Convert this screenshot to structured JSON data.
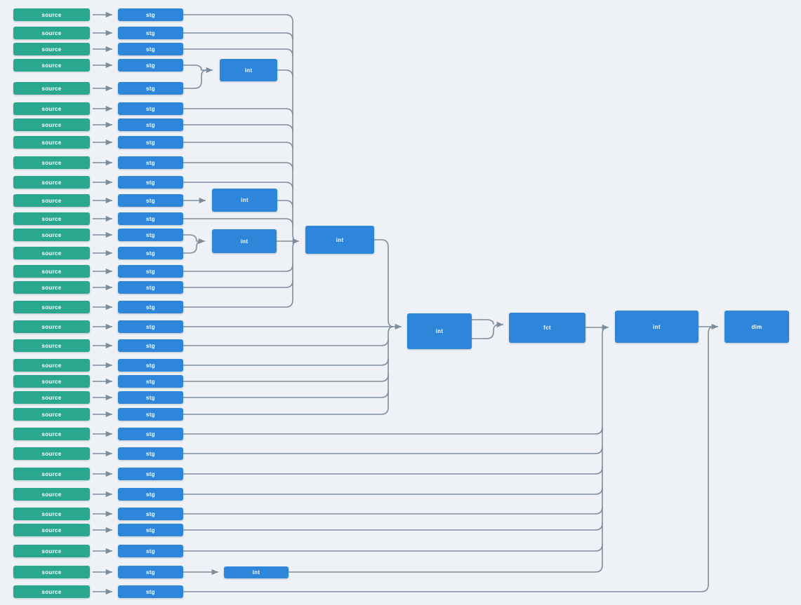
{
  "diagram": {
    "type": "lineage-dag",
    "background": "#eef2f6",
    "colors": {
      "source_node": "#2aa78f",
      "model_node": "#2e86db",
      "edge": "#7e8d9d",
      "node_text": "#ffffff"
    },
    "labels": {
      "source": "source",
      "staging": "stg",
      "intermediate": "int",
      "fact": "fct",
      "dimension": "dim"
    },
    "counts": {
      "source_nodes": 32,
      "stg_nodes": 32,
      "int_nodes": 7,
      "fct_nodes": 1,
      "dim_nodes": 1,
      "edges": 72
    },
    "nodes": [
      {
        "id": "src-01",
        "label": "source"
      },
      {
        "id": "src-02",
        "label": "source"
      },
      {
        "id": "src-03",
        "label": "source"
      },
      {
        "id": "src-04",
        "label": "source"
      },
      {
        "id": "src-05",
        "label": "source"
      },
      {
        "id": "src-06",
        "label": "source"
      },
      {
        "id": "src-07",
        "label": "source"
      },
      {
        "id": "src-08",
        "label": "source"
      },
      {
        "id": "src-09",
        "label": "source"
      },
      {
        "id": "src-10",
        "label": "source"
      },
      {
        "id": "src-11",
        "label": "source"
      },
      {
        "id": "src-12",
        "label": "source"
      },
      {
        "id": "src-13",
        "label": "source"
      },
      {
        "id": "src-14",
        "label": "source"
      },
      {
        "id": "src-15",
        "label": "source"
      },
      {
        "id": "src-16",
        "label": "source"
      },
      {
        "id": "src-17",
        "label": "source"
      },
      {
        "id": "src-18",
        "label": "source"
      },
      {
        "id": "src-19",
        "label": "source"
      },
      {
        "id": "src-20",
        "label": "source"
      },
      {
        "id": "src-21",
        "label": "source"
      },
      {
        "id": "src-22",
        "label": "source"
      },
      {
        "id": "src-23",
        "label": "source"
      },
      {
        "id": "src-24",
        "label": "source"
      },
      {
        "id": "src-25",
        "label": "source"
      },
      {
        "id": "src-26",
        "label": "source"
      },
      {
        "id": "src-27",
        "label": "source"
      },
      {
        "id": "src-28",
        "label": "source"
      },
      {
        "id": "src-29",
        "label": "source"
      },
      {
        "id": "src-30",
        "label": "source"
      },
      {
        "id": "src-31",
        "label": "source"
      },
      {
        "id": "src-32",
        "label": "source"
      },
      {
        "id": "stg-01",
        "label": "stg"
      },
      {
        "id": "stg-02",
        "label": "stg"
      },
      {
        "id": "stg-03",
        "label": "stg"
      },
      {
        "id": "stg-04",
        "label": "stg"
      },
      {
        "id": "stg-05",
        "label": "stg"
      },
      {
        "id": "stg-06",
        "label": "stg"
      },
      {
        "id": "stg-07",
        "label": "stg"
      },
      {
        "id": "stg-08",
        "label": "stg"
      },
      {
        "id": "stg-09",
        "label": "stg"
      },
      {
        "id": "stg-10",
        "label": "stg"
      },
      {
        "id": "stg-11",
        "label": "stg"
      },
      {
        "id": "stg-12",
        "label": "stg"
      },
      {
        "id": "stg-13",
        "label": "stg"
      },
      {
        "id": "stg-14",
        "label": "stg"
      },
      {
        "id": "stg-15",
        "label": "stg"
      },
      {
        "id": "stg-16",
        "label": "stg"
      },
      {
        "id": "stg-17",
        "label": "stg"
      },
      {
        "id": "stg-18",
        "label": "stg"
      },
      {
        "id": "stg-19",
        "label": "stg"
      },
      {
        "id": "stg-20",
        "label": "stg"
      },
      {
        "id": "stg-21",
        "label": "stg"
      },
      {
        "id": "stg-22",
        "label": "stg"
      },
      {
        "id": "stg-23",
        "label": "stg"
      },
      {
        "id": "stg-24",
        "label": "stg"
      },
      {
        "id": "stg-25",
        "label": "stg"
      },
      {
        "id": "stg-26",
        "label": "stg"
      },
      {
        "id": "stg-27",
        "label": "stg"
      },
      {
        "id": "stg-28",
        "label": "stg"
      },
      {
        "id": "stg-29",
        "label": "stg"
      },
      {
        "id": "stg-30",
        "label": "stg"
      },
      {
        "id": "stg-31",
        "label": "stg"
      },
      {
        "id": "stg-32",
        "label": "stg"
      },
      {
        "id": "int-top",
        "label": "int"
      },
      {
        "id": "int-a",
        "label": "int"
      },
      {
        "id": "int-b",
        "label": "int"
      },
      {
        "id": "int-c",
        "label": "int"
      },
      {
        "id": "int-mid",
        "label": "int"
      },
      {
        "id": "fct",
        "label": "fct"
      },
      {
        "id": "int-right",
        "label": "int"
      },
      {
        "id": "dim",
        "label": "dim"
      },
      {
        "id": "int-31",
        "label": "int"
      }
    ],
    "edges": [
      [
        "src-01",
        "stg-01"
      ],
      [
        "src-02",
        "stg-02"
      ],
      [
        "src-03",
        "stg-03"
      ],
      [
        "src-04",
        "stg-04"
      ],
      [
        "src-05",
        "stg-05"
      ],
      [
        "src-06",
        "stg-06"
      ],
      [
        "src-07",
        "stg-07"
      ],
      [
        "src-08",
        "stg-08"
      ],
      [
        "src-09",
        "stg-09"
      ],
      [
        "src-10",
        "stg-10"
      ],
      [
        "src-11",
        "stg-11"
      ],
      [
        "src-12",
        "stg-12"
      ],
      [
        "src-13",
        "stg-13"
      ],
      [
        "src-14",
        "stg-14"
      ],
      [
        "src-15",
        "stg-15"
      ],
      [
        "src-16",
        "stg-16"
      ],
      [
        "src-17",
        "stg-17"
      ],
      [
        "src-18",
        "stg-18"
      ],
      [
        "src-19",
        "stg-19"
      ],
      [
        "src-20",
        "stg-20"
      ],
      [
        "src-21",
        "stg-21"
      ],
      [
        "src-22",
        "stg-22"
      ],
      [
        "src-23",
        "stg-23"
      ],
      [
        "src-24",
        "stg-24"
      ],
      [
        "src-25",
        "stg-25"
      ],
      [
        "src-26",
        "stg-26"
      ],
      [
        "src-27",
        "stg-27"
      ],
      [
        "src-28",
        "stg-28"
      ],
      [
        "src-29",
        "stg-29"
      ],
      [
        "src-30",
        "stg-30"
      ],
      [
        "src-31",
        "stg-31"
      ],
      [
        "src-32",
        "stg-32"
      ],
      [
        "stg-01",
        "int-c"
      ],
      [
        "stg-02",
        "int-c"
      ],
      [
        "stg-03",
        "int-c"
      ],
      [
        "stg-06",
        "int-c"
      ],
      [
        "stg-07",
        "int-c"
      ],
      [
        "stg-08",
        "int-c"
      ],
      [
        "stg-09",
        "int-c"
      ],
      [
        "stg-10",
        "int-c"
      ],
      [
        "stg-12",
        "int-c"
      ],
      [
        "stg-15",
        "int-c"
      ],
      [
        "stg-16",
        "int-c"
      ],
      [
        "stg-17",
        "int-c"
      ],
      [
        "stg-04",
        "int-top"
      ],
      [
        "stg-05",
        "int-top"
      ],
      [
        "int-top",
        "int-c"
      ],
      [
        "stg-11",
        "int-a"
      ],
      [
        "int-a",
        "int-c"
      ],
      [
        "stg-13",
        "int-b"
      ],
      [
        "stg-14",
        "int-b"
      ],
      [
        "int-b",
        "int-c"
      ],
      [
        "int-c",
        "int-mid"
      ],
      [
        "stg-18",
        "int-mid"
      ],
      [
        "stg-19",
        "int-mid"
      ],
      [
        "stg-20",
        "int-mid"
      ],
      [
        "stg-21",
        "int-mid"
      ],
      [
        "stg-22",
        "int-mid"
      ],
      [
        "stg-23",
        "int-mid"
      ],
      [
        "int-mid",
        "fct"
      ],
      [
        "fct",
        "int-right"
      ],
      [
        "stg-24",
        "int-right"
      ],
      [
        "stg-25",
        "int-right"
      ],
      [
        "stg-26",
        "int-right"
      ],
      [
        "stg-27",
        "int-right"
      ],
      [
        "stg-28",
        "int-right"
      ],
      [
        "stg-29",
        "int-right"
      ],
      [
        "stg-30",
        "int-right"
      ],
      [
        "stg-31",
        "int-31"
      ],
      [
        "int-31",
        "int-right"
      ],
      [
        "int-right",
        "dim"
      ],
      [
        "stg-32",
        "dim"
      ]
    ]
  }
}
